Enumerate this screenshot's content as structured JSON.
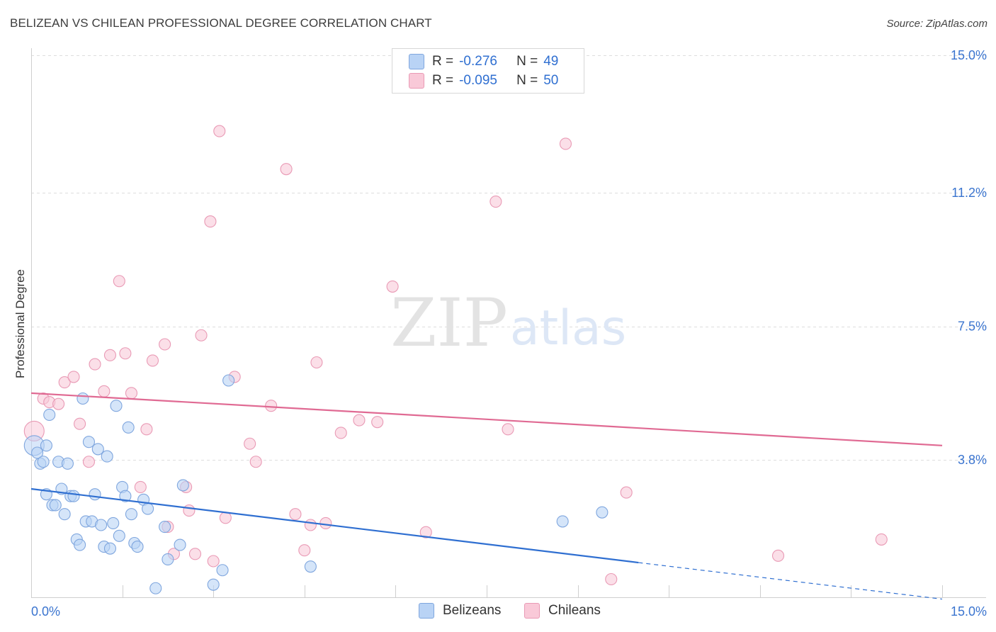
{
  "header": {
    "title": "BELIZEAN VS CHILEAN PROFESSIONAL DEGREE CORRELATION CHART",
    "source": "Source: ZipAtlas.com"
  },
  "legend": {
    "series1": {
      "r_label": "R =",
      "r_value": "-0.276",
      "n_label": "N =",
      "n_value": "49"
    },
    "series2": {
      "r_label": "R =",
      "r_value": "-0.095",
      "n_label": "N =",
      "n_value": "50"
    }
  },
  "bottom_legend": {
    "label1": "Belizeans",
    "label2": "Chileans"
  },
  "colors": {
    "blue_fill": "#b9d3f5",
    "blue_stroke": "#7fa6de",
    "blue_line": "#2f6fd1",
    "pink_fill": "#f9c9d8",
    "pink_stroke": "#e99ab5",
    "pink_line": "#e06a93",
    "tick_label": "#3a74cf",
    "grid": "#dddddd"
  },
  "chart_data": {
    "type": "scatter",
    "title": "BELIZEAN VS CHILEAN PROFESSIONAL DEGREE CORRELATION CHART",
    "xlabel": "",
    "ylabel": "Professional Degree",
    "xlim": [
      0,
      15
    ],
    "ylim": [
      0,
      15
    ],
    "x_tick_labels": [
      "0.0%",
      "15.0%"
    ],
    "y_ticks": [
      3.8,
      7.5,
      11.2,
      15.0
    ],
    "y_tick_labels": [
      "3.8%",
      "7.5%",
      "11.2%",
      "15.0%"
    ],
    "watermark": {
      "part1": "ZIP",
      "part2": "atlas"
    },
    "series": [
      {
        "name": "Belizeans",
        "r": -0.276,
        "n": 49,
        "trend": {
          "x0": 0.0,
          "y0": 3.0,
          "x1": 10.0,
          "y1": 0.96,
          "dash_x1": 15.0,
          "dash_y1": -0.05
        },
        "points": [
          [
            0.05,
            4.2
          ],
          [
            0.1,
            4.0
          ],
          [
            0.15,
            3.7
          ],
          [
            0.2,
            3.75
          ],
          [
            0.25,
            4.2
          ],
          [
            0.3,
            5.05
          ],
          [
            0.25,
            2.85
          ],
          [
            0.35,
            2.55
          ],
          [
            0.4,
            2.55
          ],
          [
            0.45,
            3.75
          ],
          [
            0.5,
            3.0
          ],
          [
            0.55,
            2.3
          ],
          [
            0.6,
            3.7
          ],
          [
            0.65,
            2.8
          ],
          [
            0.7,
            2.8
          ],
          [
            0.75,
            1.6
          ],
          [
            0.8,
            1.45
          ],
          [
            0.85,
            5.5
          ],
          [
            0.9,
            2.1
          ],
          [
            0.95,
            4.3
          ],
          [
            1.0,
            2.1
          ],
          [
            1.05,
            2.85
          ],
          [
            1.1,
            4.1
          ],
          [
            1.15,
            2.0
          ],
          [
            1.2,
            1.4
          ],
          [
            1.25,
            3.9
          ],
          [
            1.3,
            1.35
          ],
          [
            1.35,
            2.05
          ],
          [
            1.4,
            5.3
          ],
          [
            1.45,
            1.7
          ],
          [
            1.5,
            3.05
          ],
          [
            1.55,
            2.8
          ],
          [
            1.6,
            4.7
          ],
          [
            1.65,
            2.3
          ],
          [
            1.7,
            1.5
          ],
          [
            1.75,
            1.4
          ],
          [
            1.85,
            2.7
          ],
          [
            1.92,
            2.45
          ],
          [
            2.05,
            0.25
          ],
          [
            2.2,
            1.95
          ],
          [
            2.25,
            1.05
          ],
          [
            2.45,
            1.45
          ],
          [
            2.5,
            3.1
          ],
          [
            3.0,
            0.35
          ],
          [
            3.15,
            0.75
          ],
          [
            3.25,
            6.0
          ],
          [
            4.6,
            0.85
          ],
          [
            8.75,
            2.1
          ],
          [
            9.4,
            2.35
          ]
        ]
      },
      {
        "name": "Chileans",
        "r": -0.095,
        "n": 50,
        "trend": {
          "x0": 0.0,
          "y0": 5.65,
          "x1": 15.0,
          "y1": 4.2
        },
        "points": [
          [
            0.05,
            4.6
          ],
          [
            0.2,
            5.5
          ],
          [
            0.3,
            5.4
          ],
          [
            0.45,
            5.35
          ],
          [
            0.55,
            5.95
          ],
          [
            0.7,
            6.1
          ],
          [
            0.8,
            4.8
          ],
          [
            0.95,
            3.75
          ],
          [
            1.05,
            6.45
          ],
          [
            1.2,
            5.7
          ],
          [
            1.3,
            6.7
          ],
          [
            1.45,
            8.75
          ],
          [
            1.55,
            6.75
          ],
          [
            1.65,
            5.65
          ],
          [
            1.8,
            3.05
          ],
          [
            1.9,
            4.65
          ],
          [
            2.0,
            6.55
          ],
          [
            2.2,
            7.0
          ],
          [
            2.25,
            1.95
          ],
          [
            2.35,
            1.2
          ],
          [
            2.55,
            3.05
          ],
          [
            2.6,
            2.4
          ],
          [
            2.7,
            1.2
          ],
          [
            2.8,
            7.25
          ],
          [
            2.95,
            10.4
          ],
          [
            3.0,
            1.0
          ],
          [
            3.1,
            12.9
          ],
          [
            3.2,
            2.2
          ],
          [
            3.35,
            6.1
          ],
          [
            3.6,
            4.25
          ],
          [
            3.7,
            3.75
          ],
          [
            3.95,
            5.3
          ],
          [
            4.2,
            11.85
          ],
          [
            4.35,
            2.3
          ],
          [
            4.5,
            1.3
          ],
          [
            4.6,
            2.0
          ],
          [
            4.7,
            6.5
          ],
          [
            4.85,
            2.05
          ],
          [
            5.1,
            4.55
          ],
          [
            5.4,
            4.9
          ],
          [
            5.7,
            4.85
          ],
          [
            5.95,
            8.6
          ],
          [
            6.5,
            1.8
          ],
          [
            7.65,
            10.95
          ],
          [
            7.85,
            4.65
          ],
          [
            8.8,
            12.55
          ],
          [
            9.55,
            0.5
          ],
          [
            9.8,
            2.9
          ],
          [
            12.3,
            1.15
          ],
          [
            14.0,
            1.6
          ]
        ]
      }
    ]
  }
}
